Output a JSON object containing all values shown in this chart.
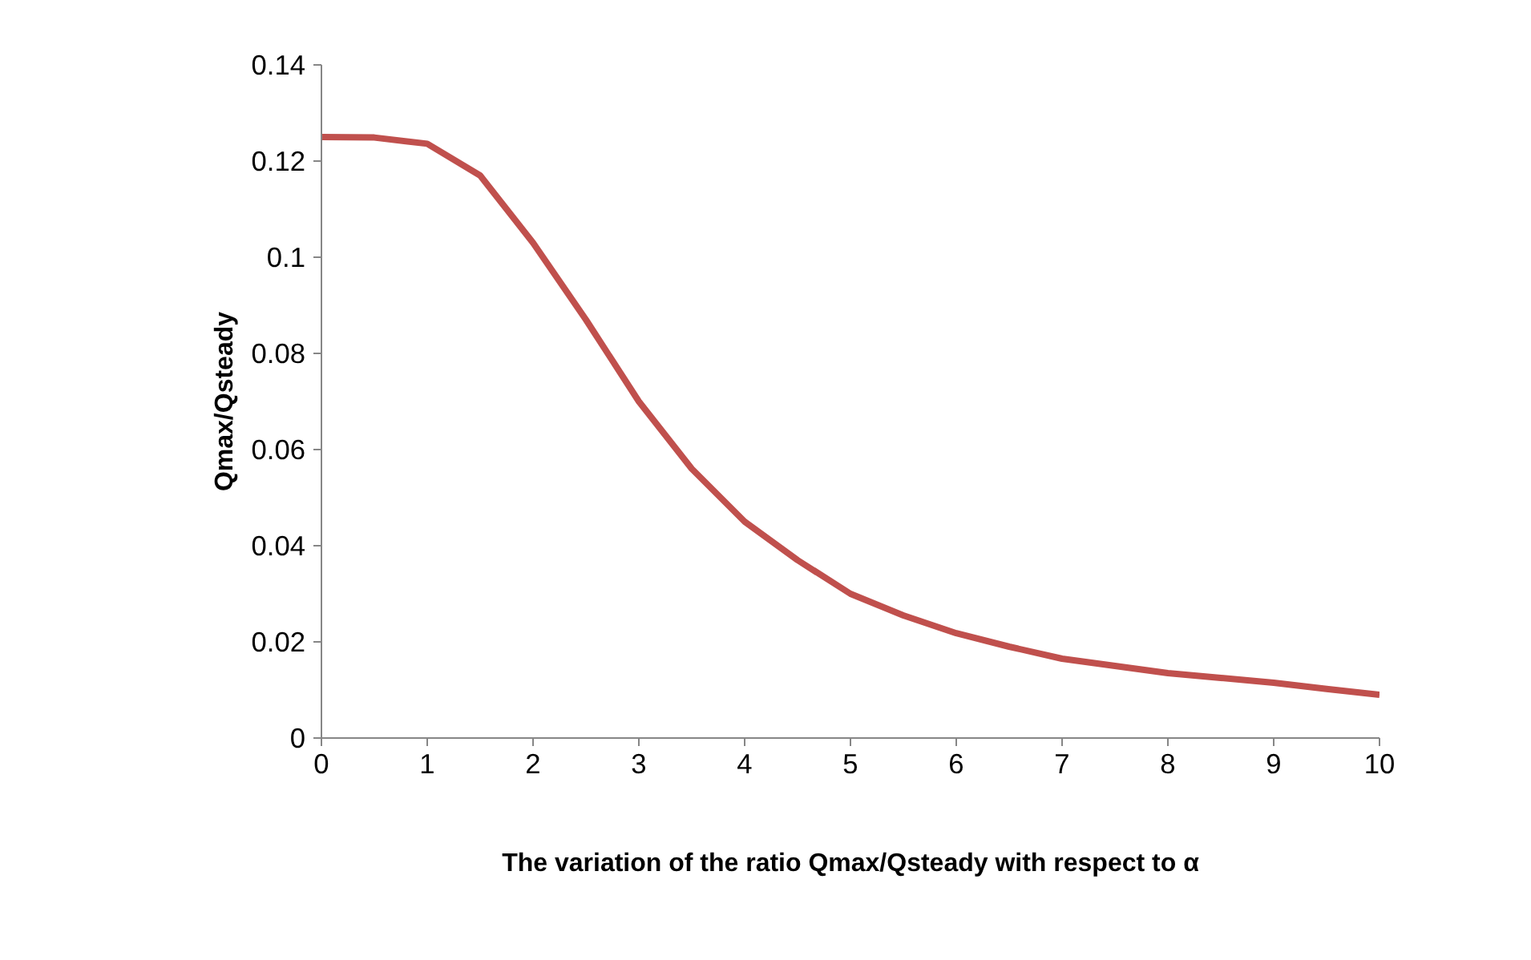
{
  "chart_data": {
    "type": "line",
    "xlabel": "The variation of the ratio Qmax/Qsteady with respect to α",
    "ylabel": "Qmax/Qsteady",
    "x": [
      0,
      0.5,
      1,
      1.5,
      2,
      2.5,
      3,
      3.5,
      4,
      4.5,
      5,
      5.5,
      6,
      6.5,
      7,
      7.5,
      8,
      8.5,
      9,
      9.5,
      10
    ],
    "series": [
      {
        "color": "#c0504d",
        "values": [
          0.125,
          0.1249,
          0.1236,
          0.117,
          0.103,
          0.087,
          0.07,
          0.056,
          0.045,
          0.037,
          0.03,
          0.0255,
          0.0218,
          0.019,
          0.0165,
          0.015,
          0.0135,
          0.0125,
          0.0115,
          0.0102,
          0.009
        ]
      }
    ],
    "xlim": [
      0,
      10
    ],
    "xticks": [
      0,
      1,
      2,
      3,
      4,
      5,
      6,
      7,
      8,
      9,
      10
    ],
    "ylim": [
      0,
      0.14
    ],
    "yticks": [
      0,
      0.02,
      0.04,
      0.06,
      0.08,
      0.1,
      0.12,
      0.14
    ],
    "grid": false,
    "marker": "none",
    "line_style": "solid"
  }
}
